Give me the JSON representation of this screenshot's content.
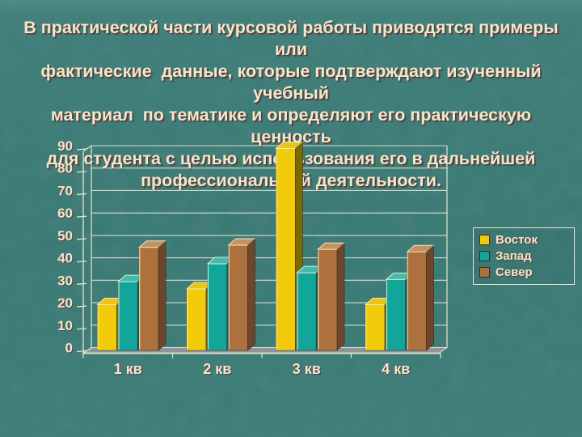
{
  "slide": {
    "title_lines": [
      "В практической части курсовой работы приводятся примеры или",
      "фактические  данные, которые подтверждают изученный учебный",
      "материал  по тематике и определяют его практическую ценность",
      "для студента с целью использования его в дальнейшей",
      "профессиональной деятельности."
    ]
  },
  "chart_data": {
    "type": "bar",
    "categories": [
      "1 кв",
      "2 кв",
      "3 кв",
      "4 кв"
    ],
    "series": [
      {
        "name": "Восток",
        "values": [
          20.4,
          27.4,
          90,
          20.4
        ],
        "color": "#f2cb0b",
        "color_top": "#e9c51b",
        "color_side": "#7e6800"
      },
      {
        "name": "Запад",
        "values": [
          30.6,
          38.6,
          34.6,
          31.6
        ],
        "color": "#12a69b",
        "color_top": "#3fbcb2",
        "color_side": "#0b6b64"
      },
      {
        "name": "Север",
        "values": [
          45.9,
          46.9,
          45,
          43.9
        ],
        "color": "#ac713c",
        "color_top": "#c4925f",
        "color_side": "#6f4629"
      }
    ],
    "y_ticks": [
      0,
      10,
      20,
      30,
      40,
      50,
      60,
      70,
      80,
      90
    ],
    "ylim": [
      0,
      90
    ],
    "grid": true,
    "legend_position": "right",
    "title": "",
    "xlabel": "",
    "ylabel": ""
  },
  "colors": {
    "background": "#3e7d78",
    "text": "#efe9cc",
    "text_shadow": "#712b2d",
    "axis": "#e8e4d0",
    "gridline": "#e8e4d0",
    "floor": "#8d9598",
    "legend_border": "#e8e4d0"
  }
}
